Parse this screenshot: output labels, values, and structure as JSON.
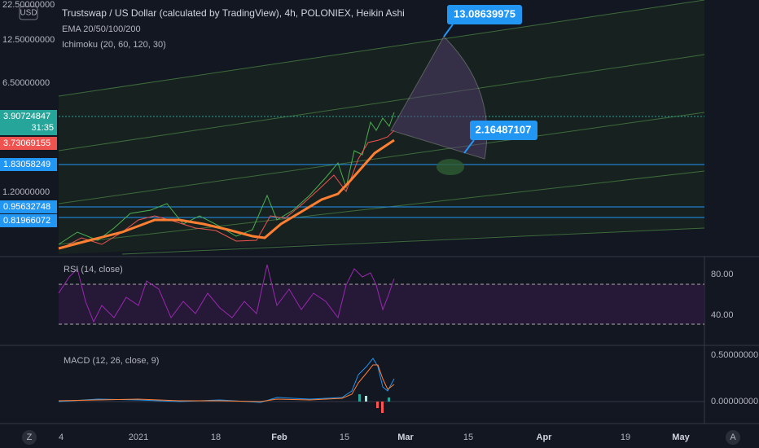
{
  "header": {
    "currency": "USD",
    "title": "Trustswap / US Dollar (calculated by TradingView), 4h, POLONIEX, Heikin Ashi",
    "indicators": [
      "EMA 20/50/100/200",
      "Ichimoku (20, 60, 120, 30)"
    ]
  },
  "price_axis": {
    "labels": [
      "22.50000000",
      "12.50000000",
      "6.50000000",
      "1.20000000"
    ],
    "current": "3.90724847",
    "countdown": "31:35",
    "ema": "3.73069155",
    "levels": [
      "1.83058249",
      "0.95632748",
      "0.81966072"
    ]
  },
  "callouts": [
    "13.08639975",
    "2.16487107"
  ],
  "rsi": {
    "label": "RSI (14, close)",
    "axis": [
      "80.00",
      "40.00"
    ]
  },
  "macd": {
    "label": "MACD (12, 26, close, 9)",
    "axis": [
      "0.50000000",
      "0.00000000"
    ]
  },
  "time_axis": [
    "4",
    "2021",
    "18",
    "Feb",
    "15",
    "Mar",
    "15",
    "Apr",
    "19",
    "May"
  ],
  "corner": {
    "left": "Z",
    "right": "A"
  }
}
